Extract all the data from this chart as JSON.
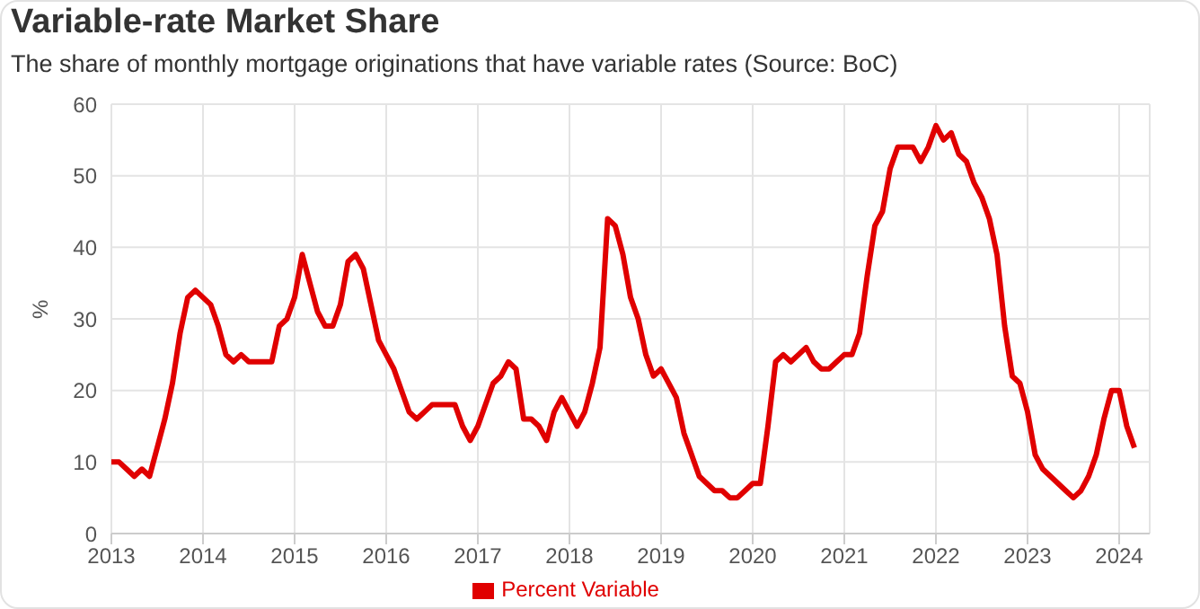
{
  "chart_data": {
    "type": "line",
    "title": "Variable-rate Market Share",
    "subtitle": "The share of monthly mortgage originations that have variable rates (Source: BoC)",
    "ylabel": "%",
    "x": [
      "2013-01",
      "2013-02",
      "2013-03",
      "2013-04",
      "2013-05",
      "2013-06",
      "2013-07",
      "2013-08",
      "2013-09",
      "2013-10",
      "2013-11",
      "2013-12",
      "2014-01",
      "2014-02",
      "2014-03",
      "2014-04",
      "2014-05",
      "2014-06",
      "2014-07",
      "2014-08",
      "2014-09",
      "2014-10",
      "2014-11",
      "2014-12",
      "2015-01",
      "2015-02",
      "2015-03",
      "2015-04",
      "2015-05",
      "2015-06",
      "2015-07",
      "2015-08",
      "2015-09",
      "2015-10",
      "2015-11",
      "2015-12",
      "2016-01",
      "2016-02",
      "2016-03",
      "2016-04",
      "2016-05",
      "2016-06",
      "2016-07",
      "2016-08",
      "2016-09",
      "2016-10",
      "2016-11",
      "2016-12",
      "2017-01",
      "2017-02",
      "2017-03",
      "2017-04",
      "2017-05",
      "2017-06",
      "2017-07",
      "2017-08",
      "2017-09",
      "2017-10",
      "2017-11",
      "2017-12",
      "2018-01",
      "2018-02",
      "2018-03",
      "2018-04",
      "2018-05",
      "2018-06",
      "2018-07",
      "2018-08",
      "2018-09",
      "2018-10",
      "2018-11",
      "2018-12",
      "2019-01",
      "2019-02",
      "2019-03",
      "2019-04",
      "2019-05",
      "2019-06",
      "2019-07",
      "2019-08",
      "2019-09",
      "2019-10",
      "2019-11",
      "2019-12",
      "2020-01",
      "2020-02",
      "2020-03",
      "2020-04",
      "2020-05",
      "2020-06",
      "2020-07",
      "2020-08",
      "2020-09",
      "2020-10",
      "2020-11",
      "2020-12",
      "2021-01",
      "2021-02",
      "2021-03",
      "2021-04",
      "2021-05",
      "2021-06",
      "2021-07",
      "2021-08",
      "2021-09",
      "2021-10",
      "2021-11",
      "2021-12",
      "2022-01",
      "2022-02",
      "2022-03",
      "2022-04",
      "2022-05",
      "2022-06",
      "2022-07",
      "2022-08",
      "2022-09",
      "2022-10",
      "2022-11",
      "2022-12",
      "2023-01",
      "2023-02",
      "2023-03",
      "2023-04",
      "2023-05",
      "2023-06",
      "2023-07",
      "2023-08",
      "2023-09",
      "2023-10",
      "2023-11",
      "2023-12",
      "2024-01",
      "2024-02",
      "2024-03"
    ],
    "series": [
      {
        "name": "Percent Variable",
        "color": "#e00000",
        "values": [
          10,
          10,
          9,
          8,
          9,
          8,
          12,
          16,
          21,
          28,
          33,
          34,
          33,
          32,
          29,
          25,
          24,
          25,
          24,
          24,
          24,
          24,
          29,
          30,
          33,
          39,
          35,
          31,
          29,
          29,
          32,
          38,
          39,
          37,
          32,
          27,
          25,
          23,
          20,
          17,
          16,
          17,
          18,
          18,
          18,
          18,
          15,
          13,
          15,
          18,
          21,
          22,
          24,
          23,
          16,
          16,
          15,
          13,
          17,
          19,
          17,
          15,
          17,
          21,
          26,
          44,
          43,
          39,
          33,
          30,
          25,
          22,
          23,
          21,
          19,
          14,
          11,
          8,
          7,
          6,
          6,
          5,
          5,
          6,
          7,
          7,
          15,
          24,
          25,
          24,
          25,
          26,
          24,
          23,
          23,
          24,
          25,
          25,
          28,
          36,
          43,
          45,
          51,
          54,
          54,
          54,
          52,
          54,
          57,
          55,
          56,
          53,
          52,
          49,
          47,
          44,
          39,
          29,
          22,
          21,
          17,
          11,
          9,
          8,
          7,
          6,
          5,
          6,
          8,
          11,
          16,
          20,
          20,
          15,
          12
        ]
      }
    ],
    "xlim": [
      "2013-01",
      "2024-05"
    ],
    "xticks": [
      "2013",
      "2014",
      "2015",
      "2016",
      "2017",
      "2018",
      "2019",
      "2020",
      "2021",
      "2022",
      "2023",
      "2024"
    ],
    "ylim": [
      0,
      60
    ],
    "yticks": [
      0,
      10,
      20,
      30,
      40,
      50,
      60
    ],
    "grid": true,
    "legend": "bottom",
    "marker": "none",
    "line_style": "solid"
  }
}
